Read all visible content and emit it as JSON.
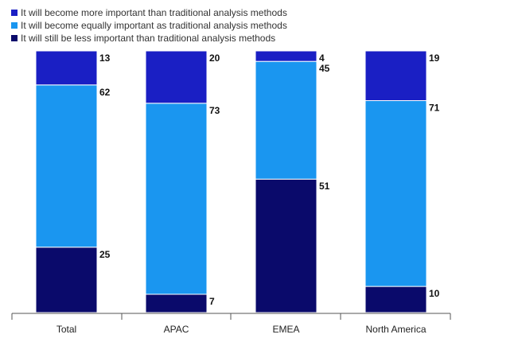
{
  "colors": {
    "more": "#1a1fc4",
    "equal": "#1a96f0",
    "less": "#0a0a6b",
    "axis": "#555555"
  },
  "legend": [
    {
      "key": "more",
      "label": "It will become more important than traditional analysis methods"
    },
    {
      "key": "equal",
      "label": "It will become equally important as traditional analysis methods"
    },
    {
      "key": "less",
      "label": "It will still be less important than traditional analysis methods"
    }
  ],
  "chart_data": {
    "type": "bar",
    "stacked": true,
    "categories": [
      "Total",
      "APAC",
      "EMEA",
      "North America"
    ],
    "series": [
      {
        "key": "less",
        "name": "It will still be less important than traditional analysis methods",
        "values": [
          25,
          7,
          51,
          10
        ]
      },
      {
        "key": "equal",
        "name": "It will become equally important as traditional analysis methods",
        "values": [
          62,
          73,
          45,
          71
        ]
      },
      {
        "key": "more",
        "name": "It will become more important than traditional analysis methods",
        "values": [
          13,
          20,
          4,
          19
        ]
      }
    ],
    "ylim": [
      0,
      100
    ],
    "legend_position": "top-left",
    "grid": false
  }
}
